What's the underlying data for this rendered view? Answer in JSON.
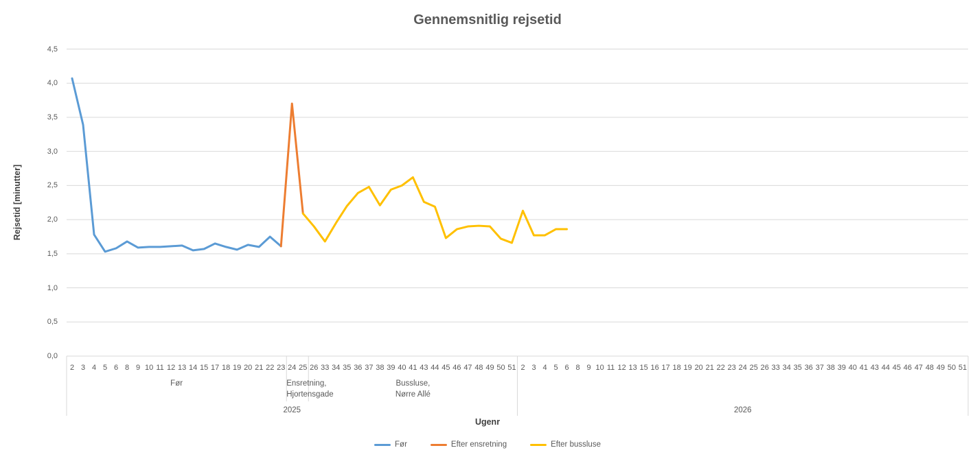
{
  "title": "Gennemsnitlig rejsetid",
  "y_axis": {
    "title": "Rejsetid [minutter]"
  },
  "x_axis": {
    "title": "Ugenr"
  },
  "colors": {
    "gridline": "#D9D9D9",
    "separator": "#D9D9D9",
    "text": "#595959",
    "series_blue": "#5B9BD5",
    "series_orange": "#ED7D31",
    "series_yellow": "#FFC000"
  },
  "chart_data": {
    "type": "line",
    "title": "Gennemsnitlig rejsetid",
    "xlabel": "Ugenr",
    "ylabel": "Rejsetid [minutter]",
    "ylim": [
      0,
      4.5
    ],
    "ytick_step": 0.5,
    "decimal_separator": ",",
    "grid": true,
    "legend_position": "bottom",
    "categories": [
      "2",
      "3",
      "4",
      "5",
      "6",
      "8",
      "9",
      "10",
      "11",
      "12",
      "13",
      "14",
      "15",
      "17",
      "18",
      "19",
      "20",
      "21",
      "22",
      "23",
      "24",
      "25",
      "26",
      "33",
      "34",
      "35",
      "36",
      "37",
      "38",
      "39",
      "40",
      "41",
      "43",
      "44",
      "45",
      "46",
      "47",
      "48",
      "49",
      "50",
      "51",
      "2",
      "3",
      "4",
      "5",
      "6",
      "8",
      "9",
      "10",
      "11",
      "12",
      "13",
      "15",
      "16",
      "17",
      "18",
      "19",
      "20",
      "21",
      "22",
      "23",
      "24",
      "25",
      "26",
      "33",
      "34",
      "35",
      "36",
      "37",
      "38",
      "39",
      "40",
      "41",
      "43",
      "44",
      "45",
      "46",
      "47",
      "48",
      "49",
      "50",
      "51"
    ],
    "groups": [
      {
        "lines": [
          "Før"
        ],
        "start": 0,
        "count": 20
      },
      {
        "lines": [
          "Ensretning,",
          "Hjortensgade"
        ],
        "start": 20,
        "count": 2
      },
      {
        "lines": [
          "Bussluse,",
          "Nørre Allé"
        ],
        "start": 22,
        "count": 19
      },
      {
        "lines": [],
        "start": 41,
        "count": 41
      }
    ],
    "years": [
      {
        "label": "2025",
        "start": 0,
        "count": 41
      },
      {
        "label": "2026",
        "start": 41,
        "count": 41
      }
    ],
    "series": [
      {
        "name": "Før",
        "color": "#5B9BD5",
        "start_index": 0,
        "values": [
          4.07,
          3.39,
          1.78,
          1.53,
          1.58,
          1.68,
          1.59,
          1.6,
          1.6,
          1.61,
          1.62,
          1.55,
          1.57,
          1.65,
          1.6,
          1.56,
          1.63,
          1.6,
          1.75,
          1.61
        ]
      },
      {
        "name": "Efter ensretning",
        "color": "#ED7D31",
        "start_index": 19,
        "values": [
          1.61,
          3.7,
          2.09
        ]
      },
      {
        "name": "Efter bussluse",
        "color": "#FFC000",
        "start_index": 21,
        "values": [
          2.09,
          1.9,
          1.68,
          1.95,
          2.2,
          2.39,
          2.48,
          2.21,
          2.44,
          2.5,
          2.62,
          2.26,
          2.19,
          1.73,
          1.86,
          1.9,
          1.91,
          1.9,
          1.72,
          1.66,
          2.13,
          1.77,
          1.77,
          1.86,
          1.86
        ]
      }
    ]
  }
}
